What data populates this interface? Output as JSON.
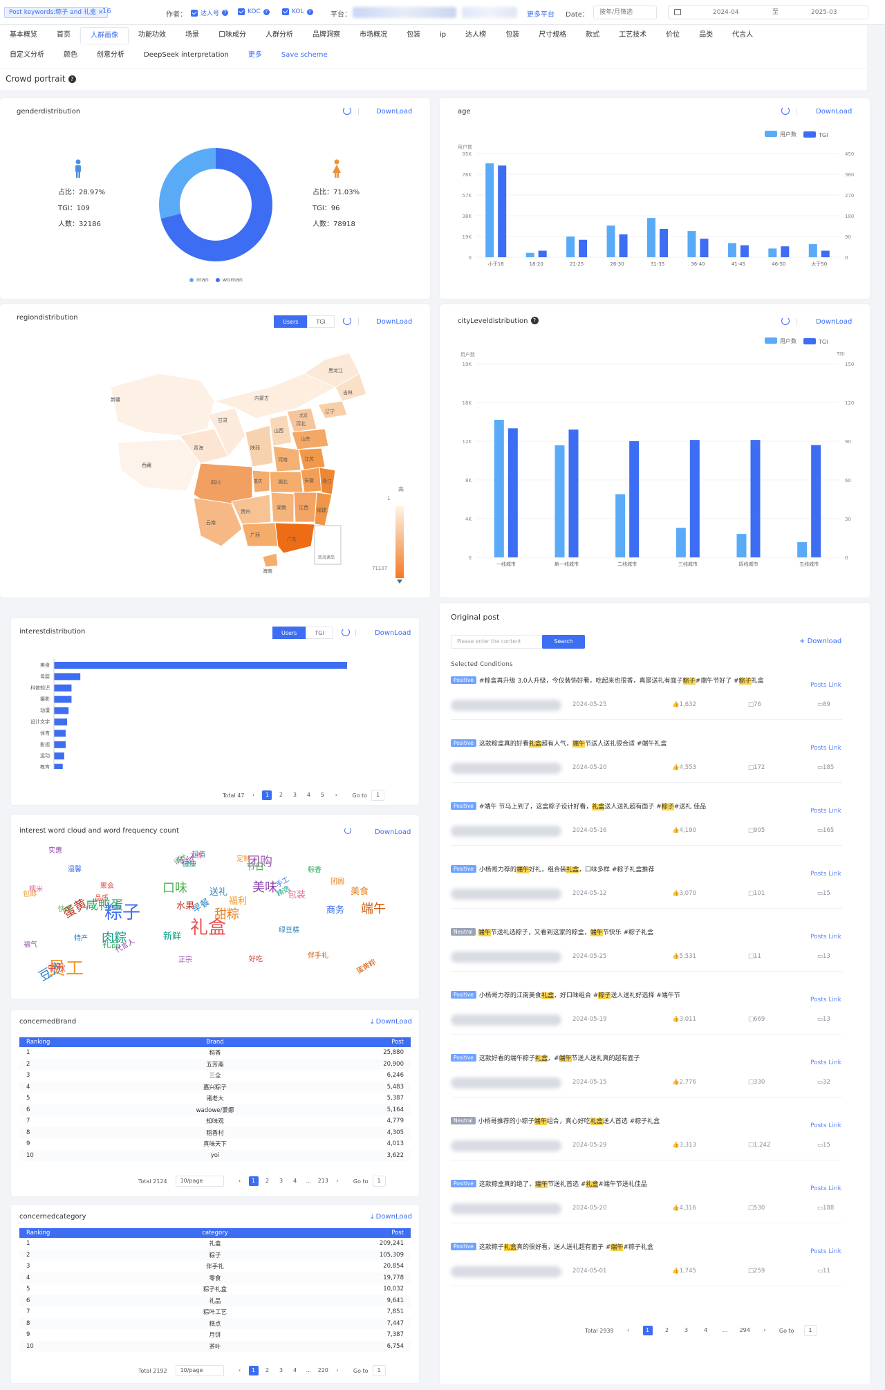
{
  "topbar": {
    "keyword_chip": "Post keywords:粽子 and 礼盒",
    "keyword_chip_close": "×",
    "keyword_count": "16",
    "author_label": "作者：",
    "author_types": [
      {
        "label": "达人号"
      },
      {
        "label": "KOC"
      },
      {
        "label": "KOL"
      }
    ],
    "platform_label": "平台：",
    "more_platforms": "更多平台",
    "date_label": "Date：",
    "date_mode": "按年/月筛选",
    "date_from": "2024-04",
    "date_to_sep": "至",
    "date_to": "2025-03"
  },
  "nav": {
    "row1": [
      "基本概览",
      "首页",
      "人群画像",
      "功能功效",
      "场景",
      "口味成分",
      "人群分析",
      "品牌洞察",
      "市场概况",
      "包装",
      "ip",
      "达人榜",
      "包装",
      "尺寸规格",
      "款式",
      "工艺技术",
      "价位",
      "品类",
      "代言人"
    ],
    "row2": [
      "自定义分析",
      "颜色",
      "创意分析",
      "DeepSeek interpretation",
      "更多",
      "Save scheme"
    ]
  },
  "section": {
    "title": "Crowd portrait"
  },
  "gender": {
    "title": "genderdistribution",
    "download": "DownLoad",
    "man": {
      "ratio": "占比：28.97%",
      "tgi": "TGI：109",
      "people": "人数：32186",
      "value": 28.97
    },
    "woman": {
      "ratio": "占比：71.03%",
      "tgi": "TGI：96",
      "people": "人数：78918",
      "value": 71.03
    },
    "legend": [
      "man",
      "woman"
    ],
    "colors": {
      "man": "#5aabf7",
      "woman": "#3d6df2"
    }
  },
  "age": {
    "title": "age",
    "download": "DownLoad",
    "legend": [
      "用户数",
      "TGI"
    ],
    "ylabel_left": "用户数",
    "ylabel_right": "TGI"
  },
  "region": {
    "title": "regiondistribution",
    "download": "DownLoad",
    "toggle": [
      "Users",
      "TGI"
    ],
    "scale_high": "高",
    "scale_top": "1",
    "scale_bottom": "71107",
    "provinces": [
      "新疆",
      "西藏",
      "青海",
      "甘肃",
      "内蒙古",
      "黑龙江",
      "吉林",
      "辽宁",
      "北京",
      "河北",
      "山西",
      "陕西",
      "四川",
      "重庆",
      "湖北",
      "湖南",
      "江西",
      "安徽",
      "江苏",
      "浙江",
      "福建",
      "广东",
      "广西",
      "云南",
      "贵州",
      "海南",
      "河南",
      "山东"
    ],
    "inset": "南海诸岛"
  },
  "cityLevel": {
    "title": "cityLeveldistribution",
    "download": "DownLoad",
    "legend": [
      "用户数",
      "TGI"
    ],
    "ylabel_left": "用户数",
    "ylabel_right": "TGI"
  },
  "interest": {
    "title": "interestdistribution",
    "download": "DownLoad",
    "toggle": [
      "Users",
      "TGI"
    ],
    "categories": [
      "美食",
      "母婴",
      "科普知识",
      "摄影",
      "动漫",
      "设计文字",
      "体育",
      "影视",
      "运动",
      "教育"
    ],
    "values": [
      100,
      9,
      6,
      6,
      5,
      4.5,
      4,
      4,
      3.5,
      3
    ],
    "pager": {
      "total": "Total 47",
      "pages": [
        "1",
        "2",
        "3",
        "4",
        "5"
      ],
      "goto": "Go to",
      "goto_value": "1"
    }
  },
  "wordcloud": {
    "title": "interest word cloud and word frequency count",
    "download": "DownLoad",
    "words": [
      "礼盒",
      "粽子",
      "员工",
      "口味",
      "团购",
      "肉粽",
      "甜粽",
      "豆沙",
      "蛋黄",
      "咸鸭蛋",
      "美味",
      "端午",
      "送礼",
      "包装",
      "中秋",
      "商务",
      "福利",
      "节日",
      "传统",
      "新鲜",
      "美食",
      "早餐",
      "水果",
      "礼品",
      "代言人",
      "蛋黄粽",
      "绿豆糕",
      "糯米",
      "品质",
      "手工",
      "包邮",
      "设计",
      "正宗",
      "健康",
      "团圆",
      "特产",
      "好吃",
      "粽香",
      "实惠",
      "伴手礼",
      "超值",
      "工作",
      "聚会",
      "温馨",
      "定制",
      "快递",
      "福气",
      "精选"
    ]
  },
  "brand": {
    "title": "concernedBrand",
    "download": "DownLoad",
    "headers": [
      "Ranking",
      "Brand",
      "Post"
    ],
    "rows": [
      [
        "1",
        "稻香",
        "25,880"
      ],
      [
        "2",
        "五芳斋",
        "20,900"
      ],
      [
        "3",
        "三全",
        "6,246"
      ],
      [
        "4",
        "嘉兴粽子",
        "5,483"
      ],
      [
        "5",
        "诸老大",
        "5,387"
      ],
      [
        "6",
        "wadowe/蒙娜",
        "5,164"
      ],
      [
        "7",
        "知味观",
        "4,779"
      ],
      [
        "8",
        "稻香村",
        "4,305"
      ],
      [
        "9",
        "真味天下",
        "4,013"
      ],
      [
        "10",
        "yoi",
        "3,622"
      ]
    ],
    "pager": {
      "total": "Total 2124",
      "per_page": "10/page",
      "pages": [
        "1",
        "2",
        "3",
        "4",
        "...",
        "213"
      ],
      "goto": "Go to",
      "goto_value": "1"
    }
  },
  "category": {
    "title": "concernedcategory",
    "download": "DownLoad",
    "headers": [
      "Ranking",
      "category",
      "Post"
    ],
    "rows": [
      [
        "1",
        "礼盒",
        "209,241"
      ],
      [
        "2",
        "粽子",
        "105,309"
      ],
      [
        "3",
        "伴手礼",
        "20,854"
      ],
      [
        "4",
        "零食",
        "19,778"
      ],
      [
        "5",
        "粽子礼盒",
        "10,032"
      ],
      [
        "6",
        "礼品",
        "9,641"
      ],
      [
        "7",
        "粽叶工艺",
        "7,851"
      ],
      [
        "8",
        "糕点",
        "7,447"
      ],
      [
        "9",
        "月饼",
        "7,387"
      ],
      [
        "10",
        "茶叶",
        "6,754"
      ]
    ],
    "pager": {
      "total": "Total 2192",
      "per_page": "10/page",
      "pages": [
        "1",
        "2",
        "3",
        "4",
        "...",
        "220"
      ],
      "goto": "Go to",
      "goto_value": "1"
    }
  },
  "posts": {
    "title": "Original post",
    "search_placeholder": "Please enter the content",
    "search_button": "Search",
    "download": "Download",
    "selected": "Selected Conditions",
    "link_label": "Posts Link",
    "items": [
      {
        "tag": "Positive",
        "pre": "#粽盒再升级 3.0人升级，今仅装饰好看，吃起来也很香，真是送礼有面子",
        "hl1": "粽子",
        "mid": "#端午节好了 #",
        "hl2": "粽子",
        "post": "礼盒",
        "date": "2024-05-25",
        "likes": "1,632",
        "comments": "76",
        "shares": "89"
      },
      {
        "tag": "Positive",
        "pre": "这款粽盒真的好看",
        "hl1": "礼盒",
        "mid": "超有人气，",
        "hl2": "端午",
        "post": "节送人送礼很合适 #端午礼盒",
        "date": "2024-05-20",
        "likes": "4,553",
        "comments": "172",
        "shares": "185"
      },
      {
        "tag": "Positive",
        "pre": "#端午 节马上到了，这盒粽子设计好看，",
        "hl1": "礼盒",
        "mid": "送人送礼超有面子 #",
        "hl2": "粽子",
        "post": "#送礼 佳品",
        "date": "2024-05-16",
        "likes": "4,190",
        "comments": "905",
        "shares": "165"
      },
      {
        "tag": "Positive",
        "pre": "小杨哥力荐的",
        "hl1": "端午",
        "mid": "好礼，组合装",
        "hl2": "礼盒",
        "post": "，口味多样 #粽子礼盒推荐",
        "date": "2024-05-12",
        "likes": "3,070",
        "comments": "101",
        "shares": "15"
      },
      {
        "tag": "Neutral",
        "pre": "",
        "hl1": "端午",
        "mid": "节送礼选粽子，又看到这家的粽盒，",
        "hl2": "端午",
        "post": "节快乐 #粽子礼盒",
        "date": "2024-05-25",
        "likes": "5,531",
        "comments": "11",
        "shares": "13"
      },
      {
        "tag": "Positive",
        "pre": "小杨哥力荐的江南美食",
        "hl1": "礼盒",
        "mid": "，好口味组合 #",
        "hl2": "粽子",
        "post": "送人送礼好选择 #端午节",
        "date": "2024-05-19",
        "likes": "3,011",
        "comments": "669",
        "shares": "13"
      },
      {
        "tag": "Positive",
        "pre": "这款好看的端午粽子",
        "hl1": "礼盒",
        "mid": "，#",
        "hl2": "端午",
        "post": "节送人送礼真的超有面子",
        "date": "2024-05-15",
        "likes": "2,776",
        "comments": "330",
        "shares": "32"
      },
      {
        "tag": "Neutral",
        "pre": "小杨哥推荐的小粽子",
        "hl1": "端午",
        "mid": "组合，真心好吃",
        "hl2": "礼盒",
        "post": "送人首选 #粽子礼盒",
        "date": "2024-05-29",
        "likes": "3,313",
        "comments": "1,242",
        "shares": "15"
      },
      {
        "tag": "Positive",
        "pre": "这款粽盒真的绝了，",
        "hl1": "端午",
        "mid": "节送礼首选 #",
        "hl2": "礼盒",
        "post": "#端午节送礼佳品",
        "date": "2024-05-20",
        "likes": "4,316",
        "comments": "530",
        "shares": "188"
      },
      {
        "tag": "Positive",
        "pre": "这款粽子",
        "hl1": "礼盒",
        "mid": "真的很好看，送人送礼超有面子 #",
        "hl2": "端午",
        "post": "#粽子礼盒",
        "date": "2024-05-01",
        "likes": "1,745",
        "comments": "259",
        "shares": "11"
      }
    ],
    "pager": {
      "total": "Total 2939",
      "pages": [
        "1",
        "2",
        "3",
        "4",
        "...",
        "294"
      ],
      "goto": "Go to",
      "goto_value": "1"
    }
  }
}
